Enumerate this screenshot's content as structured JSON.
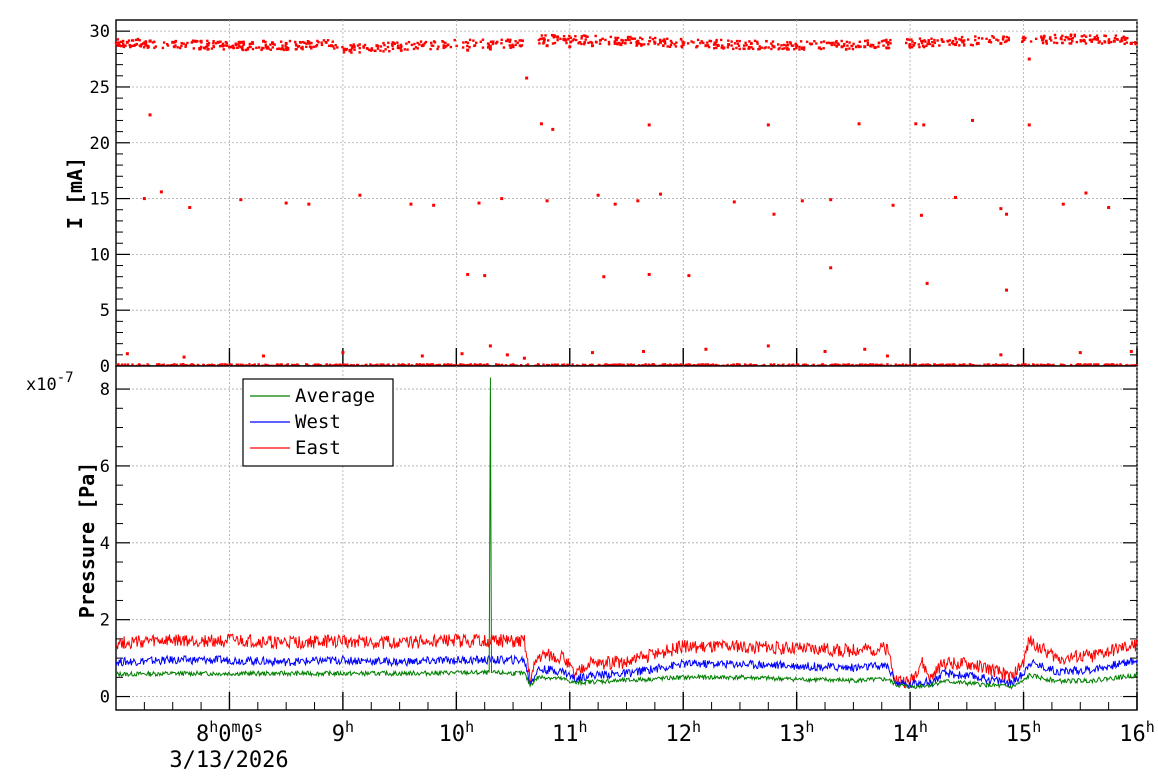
{
  "chart_data": [
    {
      "type": "scatter",
      "ylabel": "I [mA]",
      "ylim": [
        0,
        31
      ],
      "yticks": [
        0,
        5,
        10,
        15,
        20,
        25,
        30
      ],
      "xlim": [
        7.0,
        16.0
      ],
      "grid": true,
      "series": [
        {
          "color": "#ff0000",
          "points": [
            [
              7.1,
              29.0
            ],
            [
              7.3,
              29.1
            ],
            [
              7.5,
              29.0
            ],
            [
              7.7,
              29.1
            ],
            [
              7.9,
              29.0
            ],
            [
              8.1,
              29.0
            ],
            [
              8.3,
              29.1
            ],
            [
              8.5,
              28.9
            ],
            [
              8.7,
              29.0
            ],
            [
              8.9,
              28.7
            ],
            [
              9.1,
              28.6
            ],
            [
              9.3,
              28.7
            ],
            [
              9.5,
              28.5
            ],
            [
              9.7,
              28.7
            ],
            [
              9.9,
              28.6
            ],
            [
              10.1,
              28.3
            ],
            [
              10.3,
              28.4
            ],
            [
              10.5,
              28.6
            ],
            [
              10.62,
              25.8
            ],
            [
              10.8,
              28.7
            ],
            [
              11.0,
              28.6
            ],
            [
              11.2,
              28.7
            ],
            [
              11.4,
              28.9
            ],
            [
              11.6,
              29.1
            ],
            [
              11.8,
              29.0
            ],
            [
              12.0,
              28.8
            ],
            [
              12.2,
              28.7
            ],
            [
              12.4,
              28.8
            ],
            [
              12.6,
              28.9
            ],
            [
              12.8,
              28.6
            ],
            [
              13.0,
              28.7
            ],
            [
              13.2,
              28.5
            ],
            [
              13.4,
              28.6
            ],
            [
              13.6,
              28.6
            ],
            [
              13.8,
              28.5
            ],
            [
              14.0,
              28.8
            ],
            [
              14.2,
              28.7
            ],
            [
              14.4,
              28.8
            ],
            [
              14.6,
              28.9
            ],
            [
              14.8,
              28.9
            ],
            [
              15.05,
              27.5
            ],
            [
              15.2,
              29.1
            ],
            [
              15.4,
              29.3
            ],
            [
              15.6,
              29.2
            ],
            [
              15.8,
              29.1
            ],
            [
              15.95,
              28.9
            ],
            [
              7.3,
              22.5
            ],
            [
              10.75,
              21.7
            ],
            [
              10.85,
              21.2
            ],
            [
              11.7,
              21.6
            ],
            [
              12.75,
              21.6
            ],
            [
              13.55,
              21.7
            ],
            [
              14.05,
              21.7
            ],
            [
              14.12,
              21.6
            ],
            [
              14.55,
              22.0
            ],
            [
              15.05,
              21.6
            ],
            [
              7.25,
              15.0
            ],
            [
              7.4,
              15.6
            ],
            [
              7.65,
              14.2
            ],
            [
              8.1,
              14.9
            ],
            [
              8.5,
              14.6
            ],
            [
              8.7,
              14.5
            ],
            [
              9.15,
              15.3
            ],
            [
              9.6,
              14.5
            ],
            [
              9.8,
              14.4
            ],
            [
              10.2,
              14.6
            ],
            [
              10.4,
              15.0
            ],
            [
              10.8,
              14.8
            ],
            [
              11.25,
              15.3
            ],
            [
              11.4,
              14.5
            ],
            [
              11.6,
              14.8
            ],
            [
              11.8,
              15.4
            ],
            [
              12.45,
              14.7
            ],
            [
              12.8,
              13.6
            ],
            [
              13.05,
              14.8
            ],
            [
              13.3,
              14.9
            ],
            [
              13.85,
              14.4
            ],
            [
              14.1,
              13.5
            ],
            [
              14.4,
              15.1
            ],
            [
              14.8,
              14.1
            ],
            [
              14.85,
              13.6
            ],
            [
              15.35,
              14.5
            ],
            [
              15.55,
              15.5
            ],
            [
              15.75,
              14.2
            ],
            [
              10.1,
              8.2
            ],
            [
              10.25,
              8.1
            ],
            [
              11.3,
              8.0
            ],
            [
              11.7,
              8.2
            ],
            [
              12.05,
              8.1
            ],
            [
              13.3,
              8.8
            ],
            [
              14.15,
              7.4
            ],
            [
              14.85,
              6.8
            ],
            [
              7.1,
              1.1
            ],
            [
              7.6,
              0.8
            ],
            [
              8.3,
              0.9
            ],
            [
              9.0,
              1.2
            ],
            [
              9.7,
              0.9
            ],
            [
              10.05,
              1.1
            ],
            [
              10.3,
              1.8
            ],
            [
              10.45,
              1.0
            ],
            [
              10.6,
              0.7
            ],
            [
              11.2,
              1.2
            ],
            [
              11.65,
              1.3
            ],
            [
              12.2,
              1.5
            ],
            [
              12.75,
              1.8
            ],
            [
              13.25,
              1.3
            ],
            [
              13.6,
              1.5
            ],
            [
              13.8,
              0.9
            ],
            [
              14.8,
              1.0
            ],
            [
              15.5,
              1.2
            ],
            [
              15.95,
              1.3
            ],
            [
              7.4,
              0.0
            ],
            [
              8.0,
              0.0
            ],
            [
              8.8,
              0.0
            ],
            [
              9.4,
              0.0
            ],
            [
              10.0,
              0.0
            ],
            [
              10.7,
              0.0
            ],
            [
              11.4,
              0.0
            ],
            [
              12.0,
              0.0
            ],
            [
              12.6,
              0.0
            ],
            [
              13.2,
              0.0
            ],
            [
              13.9,
              0.0
            ],
            [
              14.5,
              0.0
            ],
            [
              15.2,
              0.0
            ],
            [
              15.8,
              0.0
            ]
          ]
        }
      ]
    },
    {
      "type": "line",
      "ylabel": "Pressure [Pa]",
      "exponent": "x10",
      "exponent_power": "-7",
      "ylim": [
        -0.35,
        8.6
      ],
      "yticks": [
        0,
        2,
        4,
        6,
        8
      ],
      "xlim": [
        7.0,
        16.0
      ],
      "grid": true,
      "legend_position": "top-left",
      "xticks": [
        {
          "value": 8.0,
          "label": "8",
          "sup1": "h",
          "mid1": "0",
          "sup2": "m",
          "mid2": "0",
          "sup3": "s"
        },
        {
          "value": 9.0,
          "label": "9",
          "sup1": "h"
        },
        {
          "value": 10.0,
          "label": "10",
          "sup1": "h"
        },
        {
          "value": 11.0,
          "label": "11",
          "sup1": "h"
        },
        {
          "value": 12.0,
          "label": "12",
          "sup1": "h"
        },
        {
          "value": 13.0,
          "label": "13",
          "sup1": "h"
        },
        {
          "value": 14.0,
          "label": "14",
          "sup1": "h"
        },
        {
          "value": 15.0,
          "label": "15",
          "sup1": "h"
        },
        {
          "value": 16.0,
          "label": "16",
          "sup1": "h"
        }
      ],
      "date_label": "3/13/2026",
      "series": [
        {
          "name": "Average",
          "color": "#008000",
          "x": [
            7.0,
            7.5,
            8.0,
            8.5,
            9.0,
            9.5,
            10.0,
            10.29,
            10.3,
            10.31,
            10.6,
            10.65,
            10.72,
            10.8,
            10.95,
            11.05,
            11.15,
            11.5,
            12.0,
            12.5,
            13.0,
            13.5,
            13.8,
            13.88,
            14.0,
            14.1,
            14.18,
            14.3,
            14.6,
            14.9,
            15.0,
            15.05,
            15.3,
            15.6,
            16.0
          ],
          "y": [
            0.58,
            0.6,
            0.6,
            0.6,
            0.6,
            0.6,
            0.62,
            0.62,
            8.3,
            0.62,
            0.6,
            0.3,
            0.5,
            0.5,
            0.45,
            0.35,
            0.38,
            0.42,
            0.5,
            0.5,
            0.45,
            0.42,
            0.45,
            0.3,
            0.25,
            0.28,
            0.3,
            0.4,
            0.32,
            0.25,
            0.4,
            0.55,
            0.4,
            0.42,
            0.55
          ]
        },
        {
          "name": "West",
          "color": "#0000ff",
          "x": [
            7.0,
            7.5,
            8.0,
            8.5,
            9.0,
            9.5,
            10.0,
            10.6,
            10.65,
            10.72,
            10.8,
            10.95,
            11.05,
            11.15,
            11.5,
            12.0,
            12.5,
            13.0,
            13.5,
            13.8,
            13.88,
            14.0,
            14.1,
            14.18,
            14.3,
            14.6,
            14.9,
            15.0,
            15.05,
            15.3,
            15.6,
            16.0
          ],
          "y": [
            0.9,
            0.95,
            0.95,
            0.9,
            0.95,
            0.9,
            0.95,
            0.95,
            0.35,
            0.7,
            0.7,
            0.65,
            0.45,
            0.55,
            0.6,
            0.85,
            0.85,
            0.8,
            0.75,
            0.8,
            0.35,
            0.3,
            0.4,
            0.35,
            0.6,
            0.5,
            0.35,
            0.6,
            0.9,
            0.65,
            0.7,
            0.95
          ]
        },
        {
          "name": "East",
          "color": "#ff0000",
          "x": [
            7.0,
            7.5,
            8.0,
            8.5,
            9.0,
            9.5,
            10.0,
            10.6,
            10.65,
            10.72,
            10.8,
            10.95,
            11.05,
            11.15,
            11.5,
            12.0,
            12.5,
            13.0,
            13.5,
            13.8,
            13.88,
            14.0,
            14.1,
            14.18,
            14.3,
            14.6,
            14.9,
            15.0,
            15.05,
            15.3,
            15.6,
            16.0
          ],
          "y": [
            1.4,
            1.45,
            1.45,
            1.4,
            1.45,
            1.4,
            1.45,
            1.45,
            0.45,
            1.05,
            1.1,
            1.0,
            0.55,
            0.85,
            0.9,
            1.3,
            1.3,
            1.25,
            1.2,
            1.25,
            0.45,
            0.35,
            0.9,
            0.45,
            0.9,
            0.8,
            0.5,
            0.9,
            1.45,
            1.0,
            1.05,
            1.35
          ]
        }
      ]
    }
  ]
}
